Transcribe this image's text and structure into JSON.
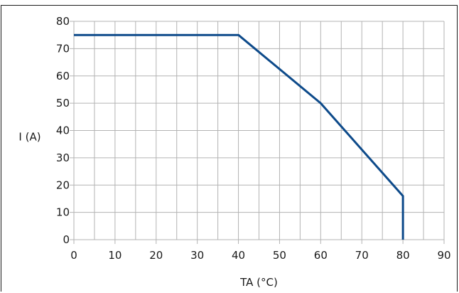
{
  "chart_data": {
    "type": "line",
    "xlabel": "TA (°C)",
    "ylabel": "I (A)",
    "xlim": [
      0,
      90
    ],
    "ylim": [
      0,
      80
    ],
    "xticks": [
      "0",
      "10",
      "20",
      "30",
      "40",
      "50",
      "60",
      "70",
      "80",
      "90"
    ],
    "yticks": [
      "0",
      "10",
      "20",
      "30",
      "40",
      "50",
      "60",
      "70",
      "80"
    ],
    "minor_x_step": 5,
    "grid": true,
    "series": [
      {
        "color": "#0d4a8a",
        "x": [
          0,
          40,
          60,
          80,
          80
        ],
        "y": [
          75,
          75,
          50,
          16,
          0
        ]
      }
    ]
  }
}
